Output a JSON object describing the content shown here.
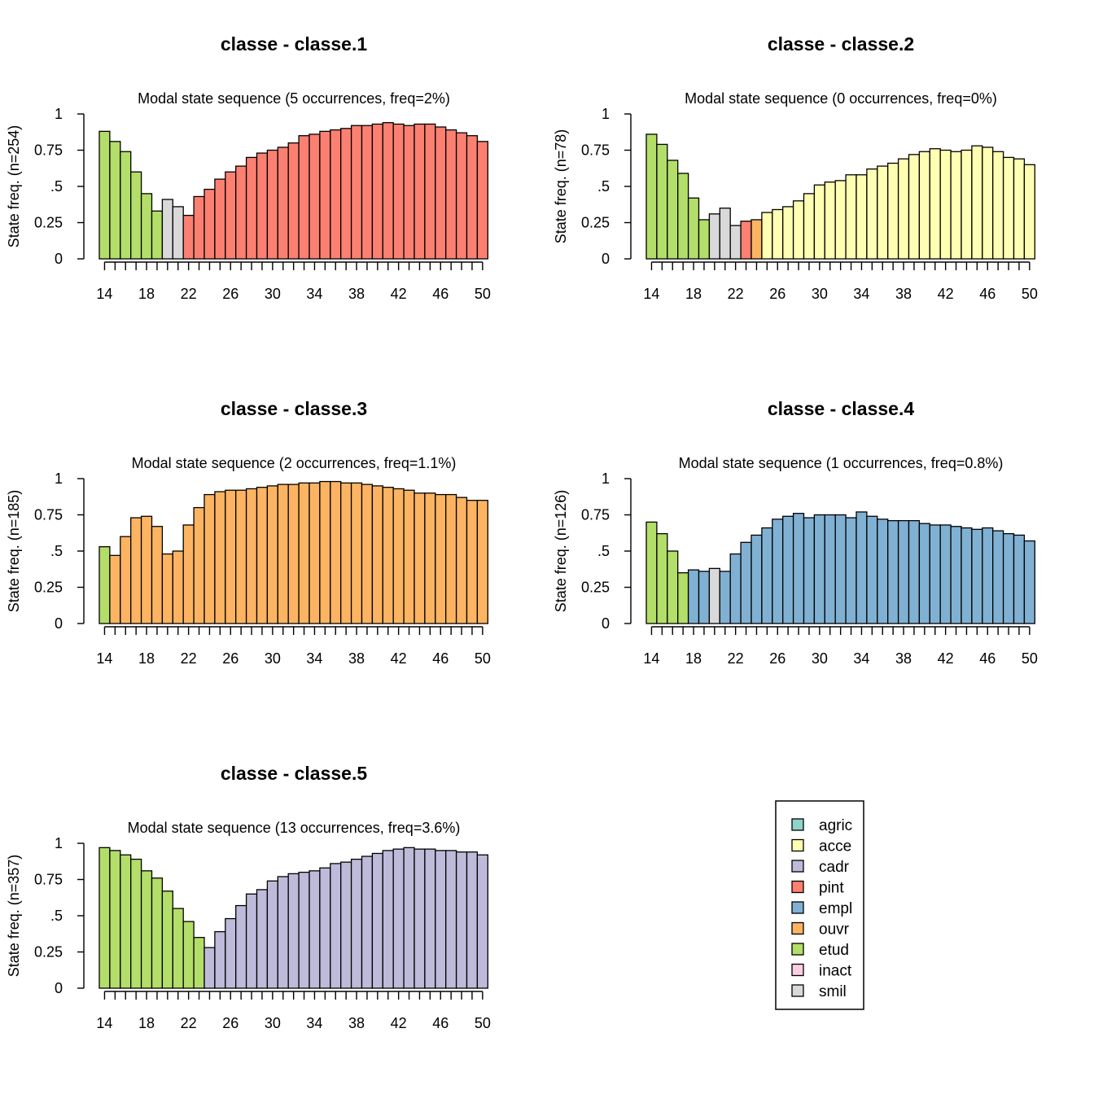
{
  "colors": {
    "agric": "#8DD3C7",
    "acce": "#FFFFB3",
    "cadr": "#BEBADA",
    "pint": "#FB8072",
    "empl": "#80B1D3",
    "ouvr": "#FDB462",
    "etud": "#B3DE69",
    "inact": "#FCCDE5",
    "smil": "#D9D9D9"
  },
  "legend": {
    "items": [
      {
        "key": "agric",
        "label": "agric"
      },
      {
        "key": "acce",
        "label": "acce"
      },
      {
        "key": "cadr",
        "label": "cadr"
      },
      {
        "key": "pint",
        "label": "pint"
      },
      {
        "key": "empl",
        "label": "empl"
      },
      {
        "key": "ouvr",
        "label": "ouvr"
      },
      {
        "key": "etud",
        "label": "etud"
      },
      {
        "key": "inact",
        "label": "inact"
      },
      {
        "key": "smil",
        "label": "smil"
      }
    ]
  },
  "chart_data": [
    {
      "type": "bar",
      "title": "classe - classe.1",
      "subtitle": "Modal state sequence (5 occurrences, freq=2%)",
      "ylabel": "State freq. (n=254)",
      "ylim": [
        0,
        1
      ],
      "yticks": [
        "0",
        "0.25",
        ".5",
        "0.75",
        "1"
      ],
      "xticks": [
        "14",
        "18",
        "22",
        "26",
        "30",
        "34",
        "38",
        "42",
        "46",
        "50"
      ],
      "x_from": 14,
      "x_to": 50,
      "states": [
        "etud",
        "etud",
        "etud",
        "etud",
        "etud",
        "etud",
        "smil",
        "smil",
        "pint",
        "pint",
        "pint",
        "pint",
        "pint",
        "pint",
        "pint",
        "pint",
        "pint",
        "pint",
        "pint",
        "pint",
        "pint",
        "pint",
        "pint",
        "pint",
        "pint",
        "pint",
        "pint",
        "pint",
        "pint",
        "pint",
        "pint",
        "pint",
        "pint",
        "pint",
        "pint",
        "pint",
        "pint"
      ],
      "values": [
        0.88,
        0.81,
        0.74,
        0.6,
        0.45,
        0.33,
        0.41,
        0.36,
        0.3,
        0.43,
        0.48,
        0.55,
        0.6,
        0.64,
        0.7,
        0.73,
        0.75,
        0.77,
        0.8,
        0.85,
        0.86,
        0.88,
        0.89,
        0.9,
        0.92,
        0.92,
        0.93,
        0.94,
        0.93,
        0.92,
        0.93,
        0.93,
        0.91,
        0.89,
        0.87,
        0.85,
        0.81
      ]
    },
    {
      "type": "bar",
      "title": "classe - classe.2",
      "subtitle": "Modal state sequence (0 occurrences, freq=0%)",
      "ylabel": "State freq. (n=78)",
      "ylim": [
        0,
        1
      ],
      "yticks": [
        "0",
        "0.25",
        ".5",
        "0.75",
        "1"
      ],
      "xticks": [
        "14",
        "18",
        "22",
        "26",
        "30",
        "34",
        "38",
        "42",
        "46",
        "50"
      ],
      "x_from": 14,
      "x_to": 50,
      "states": [
        "etud",
        "etud",
        "etud",
        "etud",
        "etud",
        "etud",
        "smil",
        "smil",
        "smil",
        "pint",
        "ouvr",
        "acce",
        "acce",
        "acce",
        "acce",
        "acce",
        "acce",
        "acce",
        "acce",
        "acce",
        "acce",
        "acce",
        "acce",
        "acce",
        "acce",
        "acce",
        "acce",
        "acce",
        "acce",
        "acce",
        "acce",
        "acce",
        "acce",
        "acce",
        "acce",
        "acce",
        "acce"
      ],
      "values": [
        0.86,
        0.79,
        0.68,
        0.59,
        0.42,
        0.27,
        0.31,
        0.35,
        0.23,
        0.26,
        0.27,
        0.32,
        0.34,
        0.36,
        0.4,
        0.45,
        0.51,
        0.53,
        0.54,
        0.58,
        0.58,
        0.62,
        0.64,
        0.66,
        0.69,
        0.72,
        0.74,
        0.76,
        0.75,
        0.74,
        0.75,
        0.78,
        0.77,
        0.74,
        0.7,
        0.69,
        0.65
      ]
    },
    {
      "type": "bar",
      "title": "classe - classe.3",
      "subtitle": "Modal state sequence (2 occurrences, freq=1.1%)",
      "ylabel": "State freq. (n=185)",
      "ylim": [
        0,
        1
      ],
      "yticks": [
        "0",
        "0.25",
        ".5",
        "0.75",
        "1"
      ],
      "xticks": [
        "14",
        "18",
        "22",
        "26",
        "30",
        "34",
        "38",
        "42",
        "46",
        "50"
      ],
      "x_from": 14,
      "x_to": 50,
      "states": [
        "etud",
        "ouvr",
        "ouvr",
        "ouvr",
        "ouvr",
        "ouvr",
        "ouvr",
        "ouvr",
        "ouvr",
        "ouvr",
        "ouvr",
        "ouvr",
        "ouvr",
        "ouvr",
        "ouvr",
        "ouvr",
        "ouvr",
        "ouvr",
        "ouvr",
        "ouvr",
        "ouvr",
        "ouvr",
        "ouvr",
        "ouvr",
        "ouvr",
        "ouvr",
        "ouvr",
        "ouvr",
        "ouvr",
        "ouvr",
        "ouvr",
        "ouvr",
        "ouvr",
        "ouvr",
        "ouvr",
        "ouvr",
        "ouvr"
      ],
      "values": [
        0.53,
        0.47,
        0.6,
        0.73,
        0.74,
        0.67,
        0.48,
        0.5,
        0.68,
        0.8,
        0.89,
        0.91,
        0.92,
        0.92,
        0.93,
        0.94,
        0.95,
        0.96,
        0.96,
        0.97,
        0.97,
        0.98,
        0.98,
        0.97,
        0.97,
        0.96,
        0.95,
        0.94,
        0.93,
        0.92,
        0.9,
        0.9,
        0.89,
        0.89,
        0.87,
        0.85,
        0.85
      ]
    },
    {
      "type": "bar",
      "title": "classe - classe.4",
      "subtitle": "Modal state sequence (1 occurrences, freq=0.8%)",
      "ylabel": "State freq. (n=126)",
      "ylim": [
        0,
        1
      ],
      "yticks": [
        "0",
        "0.25",
        ".5",
        "0.75",
        "1"
      ],
      "xticks": [
        "14",
        "18",
        "22",
        "26",
        "30",
        "34",
        "38",
        "42",
        "46",
        "50"
      ],
      "x_from": 14,
      "x_to": 50,
      "states": [
        "etud",
        "etud",
        "etud",
        "etud",
        "empl",
        "empl",
        "smil",
        "empl",
        "empl",
        "empl",
        "empl",
        "empl",
        "empl",
        "empl",
        "empl",
        "empl",
        "empl",
        "empl",
        "empl",
        "empl",
        "empl",
        "empl",
        "empl",
        "empl",
        "empl",
        "empl",
        "empl",
        "empl",
        "empl",
        "empl",
        "empl",
        "empl",
        "empl",
        "empl",
        "empl",
        "empl",
        "empl"
      ],
      "values": [
        0.7,
        0.62,
        0.5,
        0.35,
        0.37,
        0.36,
        0.38,
        0.36,
        0.48,
        0.56,
        0.61,
        0.66,
        0.72,
        0.74,
        0.76,
        0.73,
        0.75,
        0.75,
        0.75,
        0.73,
        0.77,
        0.74,
        0.72,
        0.71,
        0.71,
        0.71,
        0.69,
        0.68,
        0.68,
        0.67,
        0.66,
        0.65,
        0.66,
        0.64,
        0.62,
        0.61,
        0.57
      ]
    },
    {
      "type": "bar",
      "title": "classe - classe.5",
      "subtitle": "Modal state sequence (13 occurrences, freq=3.6%)",
      "ylabel": "State freq. (n=357)",
      "ylim": [
        0,
        1
      ],
      "yticks": [
        "0",
        "0.25",
        ".5",
        "0.75",
        "1"
      ],
      "xticks": [
        "14",
        "18",
        "22",
        "26",
        "30",
        "34",
        "38",
        "42",
        "46",
        "50"
      ],
      "x_from": 14,
      "x_to": 50,
      "states": [
        "etud",
        "etud",
        "etud",
        "etud",
        "etud",
        "etud",
        "etud",
        "etud",
        "etud",
        "etud",
        "cadr",
        "cadr",
        "cadr",
        "cadr",
        "cadr",
        "cadr",
        "cadr",
        "cadr",
        "cadr",
        "cadr",
        "cadr",
        "cadr",
        "cadr",
        "cadr",
        "cadr",
        "cadr",
        "cadr",
        "cadr",
        "cadr",
        "cadr",
        "cadr",
        "cadr",
        "cadr",
        "cadr",
        "cadr",
        "cadr",
        "cadr"
      ],
      "values": [
        0.97,
        0.95,
        0.92,
        0.89,
        0.81,
        0.76,
        0.67,
        0.55,
        0.46,
        0.35,
        0.28,
        0.39,
        0.48,
        0.57,
        0.65,
        0.68,
        0.74,
        0.77,
        0.79,
        0.8,
        0.81,
        0.83,
        0.86,
        0.87,
        0.89,
        0.91,
        0.93,
        0.95,
        0.96,
        0.97,
        0.96,
        0.96,
        0.95,
        0.95,
        0.94,
        0.94,
        0.92
      ]
    }
  ]
}
